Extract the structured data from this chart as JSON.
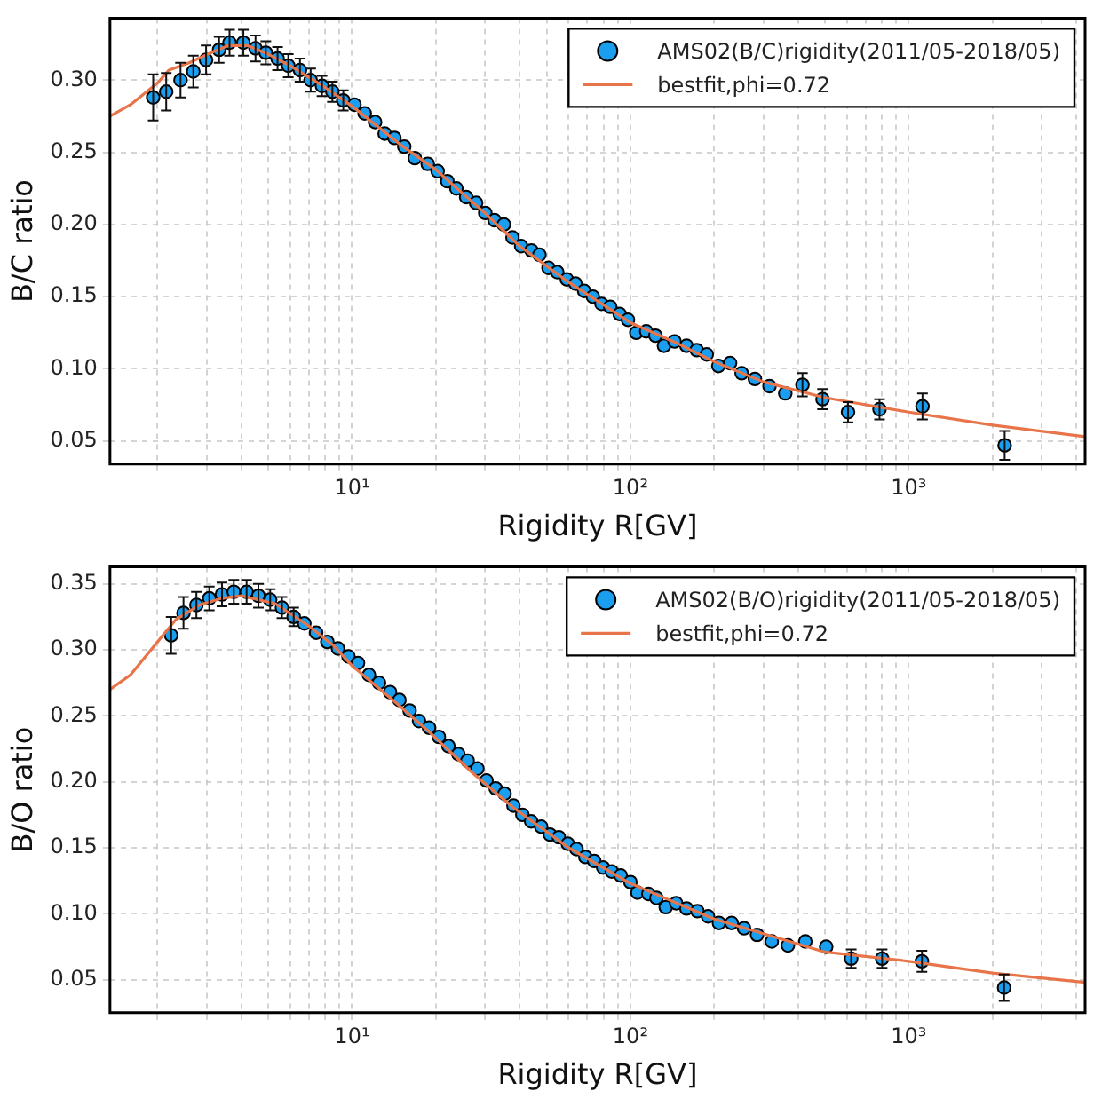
{
  "chart_data": [
    {
      "type": "scatter",
      "xlabel": "Rigidity R[GV]",
      "ylabel": "B/C ratio",
      "log": "x",
      "grid": true,
      "legend": "top right",
      "xlim": [
        1.35,
        4300
      ],
      "ylim": [
        0.034,
        0.343
      ],
      "xticks": [
        {
          "value": 2,
          "label": null
        },
        {
          "value": 3,
          "label": null
        },
        {
          "value": 4,
          "label": null
        },
        {
          "value": 5,
          "label": null
        },
        {
          "value": 6,
          "label": null
        },
        {
          "value": 7,
          "label": null
        },
        {
          "value": 8,
          "label": null
        },
        {
          "value": 9,
          "label": null
        },
        {
          "value": 10,
          "label": "10¹"
        },
        {
          "value": 20,
          "label": null
        },
        {
          "value": 30,
          "label": null
        },
        {
          "value": 40,
          "label": null
        },
        {
          "value": 50,
          "label": null
        },
        {
          "value": 60,
          "label": null
        },
        {
          "value": 70,
          "label": null
        },
        {
          "value": 80,
          "label": null
        },
        {
          "value": 90,
          "label": null
        },
        {
          "value": 100,
          "label": "10²"
        },
        {
          "value": 200,
          "label": null
        },
        {
          "value": 300,
          "label": null
        },
        {
          "value": 400,
          "label": null
        },
        {
          "value": 500,
          "label": null
        },
        {
          "value": 600,
          "label": null
        },
        {
          "value": 700,
          "label": null
        },
        {
          "value": 800,
          "label": null
        },
        {
          "value": 900,
          "label": null
        },
        {
          "value": 1000,
          "label": "10³"
        },
        {
          "value": 2000,
          "label": null
        },
        {
          "value": 3000,
          "label": null
        },
        {
          "value": 4000,
          "label": null
        }
      ],
      "yticks": [
        0.05,
        {
          "value": 0.1,
          "label": "0.10"
        },
        0.15,
        {
          "value": 0.2,
          "label": "0.20"
        },
        0.25,
        {
          "value": 0.3,
          "label": "0.30"
        }
      ],
      "series": [
        {
          "type": "scatter",
          "name": "AMS02(B/C)rigidity(2011/05-2018/05)",
          "color": "#1a9ff0",
          "marker": "circle",
          "x": [
            1.93,
            2.15,
            2.42,
            2.69,
            2.99,
            3.33,
            3.63,
            4.07,
            4.5,
            4.9,
            5.4,
            5.9,
            6.5,
            7.1,
            7.8,
            8.5,
            9.3,
            10.2,
            11.1,
            12.1,
            13.1,
            14.2,
            15.4,
            16.8,
            18.7,
            20.3,
            22.0,
            23.7,
            25.7,
            27.9,
            30.1,
            32.5,
            35.1,
            37.7,
            40.5,
            44.1,
            47.1,
            50.8,
            54.6,
            59.1,
            63.5,
            68.2,
            73.3,
            78.7,
            84.6,
            91.5,
            98,
            105,
            114,
            123,
            132,
            144,
            159,
            173,
            188,
            207,
            228,
            251,
            280,
            316,
            360,
            415,
            490,
            605,
            785,
            1120,
            2210
          ],
          "values": [
            0.288,
            0.292,
            0.3,
            0.306,
            0.314,
            0.321,
            0.326,
            0.326,
            0.322,
            0.319,
            0.315,
            0.31,
            0.307,
            0.3,
            0.296,
            0.292,
            0.286,
            0.283,
            0.277,
            0.271,
            0.263,
            0.26,
            0.254,
            0.246,
            0.242,
            0.237,
            0.23,
            0.225,
            0.219,
            0.215,
            0.208,
            0.203,
            0.2,
            0.191,
            0.185,
            0.182,
            0.179,
            0.17,
            0.167,
            0.162,
            0.159,
            0.154,
            0.15,
            0.145,
            0.143,
            0.138,
            0.134,
            0.125,
            0.126,
            0.123,
            0.116,
            0.119,
            0.116,
            0.113,
            0.11,
            0.102,
            0.104,
            0.097,
            0.093,
            0.088,
            0.083,
            0.089,
            0.079,
            0.07,
            0.072,
            0.074,
            0.047
          ],
          "errors": [
            0.016,
            0.013,
            0.012,
            0.011,
            0.01,
            0.009,
            0.009,
            0.009,
            0.009,
            0.008,
            0.008,
            0.008,
            0.008,
            0.008,
            0.007,
            0.007,
            0.007,
            null,
            null,
            null,
            null,
            null,
            null,
            null,
            null,
            null,
            null,
            null,
            null,
            null,
            null,
            null,
            null,
            null,
            null,
            null,
            null,
            null,
            null,
            null,
            null,
            null,
            null,
            null,
            null,
            null,
            null,
            null,
            null,
            null,
            null,
            null,
            null,
            null,
            null,
            null,
            null,
            null,
            null,
            null,
            null,
            0.008,
            0.007,
            0.007,
            0.007,
            0.009,
            0.01
          ]
        },
        {
          "type": "line",
          "name": "bestfit,phi=0.72",
          "color": "#e8744a",
          "marker": "none",
          "x": [
            1.35,
            1.6,
            2.0,
            2.2,
            2.6,
            3.2,
            3.6,
            4.2,
            5,
            6,
            7,
            8,
            10,
            15,
            20,
            30,
            40,
            60,
            100,
            150,
            200,
            300,
            500,
            1000,
            2000,
            4300
          ],
          "values": [
            0.275,
            0.283,
            0.298,
            0.307,
            0.312,
            0.32,
            0.324,
            0.324,
            0.318,
            0.31,
            0.302,
            0.295,
            0.282,
            0.255,
            0.238,
            0.208,
            0.185,
            0.16,
            0.132,
            0.117,
            0.105,
            0.091,
            0.08,
            0.07,
            0.061,
            0.053
          ]
        }
      ]
    },
    {
      "type": "scatter",
      "xlabel": "Rigidity R[GV]",
      "ylabel": "B/O ratio",
      "log": "x",
      "grid": true,
      "legend": "top right",
      "xlim": [
        1.35,
        4300
      ],
      "ylim": [
        0.025,
        0.363
      ],
      "xticks": [
        {
          "value": 2,
          "label": null
        },
        {
          "value": 3,
          "label": null
        },
        {
          "value": 4,
          "label": null
        },
        {
          "value": 5,
          "label": null
        },
        {
          "value": 6,
          "label": null
        },
        {
          "value": 7,
          "label": null
        },
        {
          "value": 8,
          "label": null
        },
        {
          "value": 9,
          "label": null
        },
        {
          "value": 10,
          "label": "10¹"
        },
        {
          "value": 20,
          "label": null
        },
        {
          "value": 30,
          "label": null
        },
        {
          "value": 40,
          "label": null
        },
        {
          "value": 50,
          "label": null
        },
        {
          "value": 60,
          "label": null
        },
        {
          "value": 70,
          "label": null
        },
        {
          "value": 80,
          "label": null
        },
        {
          "value": 90,
          "label": null
        },
        {
          "value": 100,
          "label": "10²"
        },
        {
          "value": 200,
          "label": null
        },
        {
          "value": 300,
          "label": null
        },
        {
          "value": 400,
          "label": null
        },
        {
          "value": 500,
          "label": null
        },
        {
          "value": 600,
          "label": null
        },
        {
          "value": 700,
          "label": null
        },
        {
          "value": 800,
          "label": null
        },
        {
          "value": 900,
          "label": null
        },
        {
          "value": 1000,
          "label": "10³"
        },
        {
          "value": 2000,
          "label": null
        },
        {
          "value": 3000,
          "label": null
        },
        {
          "value": 4000,
          "label": null
        }
      ],
      "yticks": [
        0.05,
        {
          "value": 0.1,
          "label": "0.10"
        },
        0.15,
        {
          "value": 0.2,
          "label": "0.20"
        },
        0.25,
        {
          "value": 0.3,
          "label": "0.30"
        },
        0.35
      ],
      "series": [
        {
          "type": "scatter",
          "name": "AMS02(B/O)rigidity(2011/05-2018/05)",
          "color": "#1a9ff0",
          "marker": "circle",
          "x": [
            2.24,
            2.48,
            2.76,
            3.07,
            3.41,
            3.76,
            4.18,
            4.61,
            5.08,
            5.6,
            6.17,
            6.74,
            7.43,
            8.15,
            8.9,
            9.71,
            10.5,
            11.5,
            12.5,
            13.7,
            14.8,
            16.1,
            17.4,
            18.9,
            20.5,
            22.2,
            24.1,
            26.0,
            28.2,
            30.4,
            32.8,
            35.3,
            38.0,
            40.9,
            44.0,
            47.8,
            51.4,
            55.3,
            59.6,
            64.0,
            68.9,
            74.1,
            79.8,
            85.7,
            92.3,
            100,
            106,
            116,
            124,
            134,
            146,
            159,
            174,
            190,
            208,
            231,
            256,
            285,
            322,
            368,
            425,
            505,
            621,
            802,
            1115,
            2200
          ],
          "values": [
            0.311,
            0.328,
            0.334,
            0.339,
            0.342,
            0.344,
            0.344,
            0.341,
            0.338,
            0.332,
            0.325,
            0.32,
            0.313,
            0.306,
            0.301,
            0.295,
            0.29,
            0.281,
            0.275,
            0.268,
            0.262,
            0.254,
            0.246,
            0.241,
            0.234,
            0.227,
            0.221,
            0.216,
            0.21,
            0.201,
            0.195,
            0.191,
            0.182,
            0.175,
            0.17,
            0.166,
            0.16,
            0.158,
            0.153,
            0.149,
            0.143,
            0.14,
            0.135,
            0.132,
            0.129,
            0.124,
            0.116,
            0.115,
            0.112,
            0.105,
            0.108,
            0.104,
            0.102,
            0.098,
            0.093,
            0.093,
            0.089,
            0.084,
            0.079,
            0.076,
            0.079,
            0.075,
            0.066,
            0.066,
            0.064,
            0.044
          ],
          "errors": [
            0.014,
            0.012,
            0.01,
            0.009,
            0.009,
            0.009,
            0.009,
            0.009,
            0.008,
            0.008,
            0.007,
            null,
            null,
            null,
            null,
            null,
            null,
            null,
            null,
            null,
            null,
            null,
            null,
            null,
            null,
            null,
            null,
            null,
            null,
            null,
            null,
            null,
            null,
            null,
            null,
            null,
            null,
            null,
            null,
            null,
            null,
            null,
            null,
            null,
            null,
            null,
            null,
            null,
            null,
            null,
            null,
            null,
            null,
            null,
            null,
            null,
            null,
            null,
            null,
            null,
            null,
            null,
            0.007,
            0.007,
            0.008,
            0.01
          ]
        },
        {
          "type": "line",
          "name": "bestfit,phi=0.72",
          "color": "#e8744a",
          "marker": "none",
          "x": [
            1.35,
            1.6,
            2.0,
            2.33,
            2.83,
            3.4,
            4.0,
            5.3,
            7,
            8.6,
            10,
            14,
            18.9,
            27,
            37.7,
            60,
            100,
            200,
            500,
            1000,
            2000,
            4300
          ],
          "values": [
            0.27,
            0.281,
            0.306,
            0.323,
            0.334,
            0.339,
            0.341,
            0.335,
            0.318,
            0.303,
            0.288,
            0.262,
            0.238,
            0.207,
            0.181,
            0.15,
            0.123,
            0.096,
            0.071,
            0.064,
            0.055,
            0.048
          ]
        }
      ]
    }
  ]
}
